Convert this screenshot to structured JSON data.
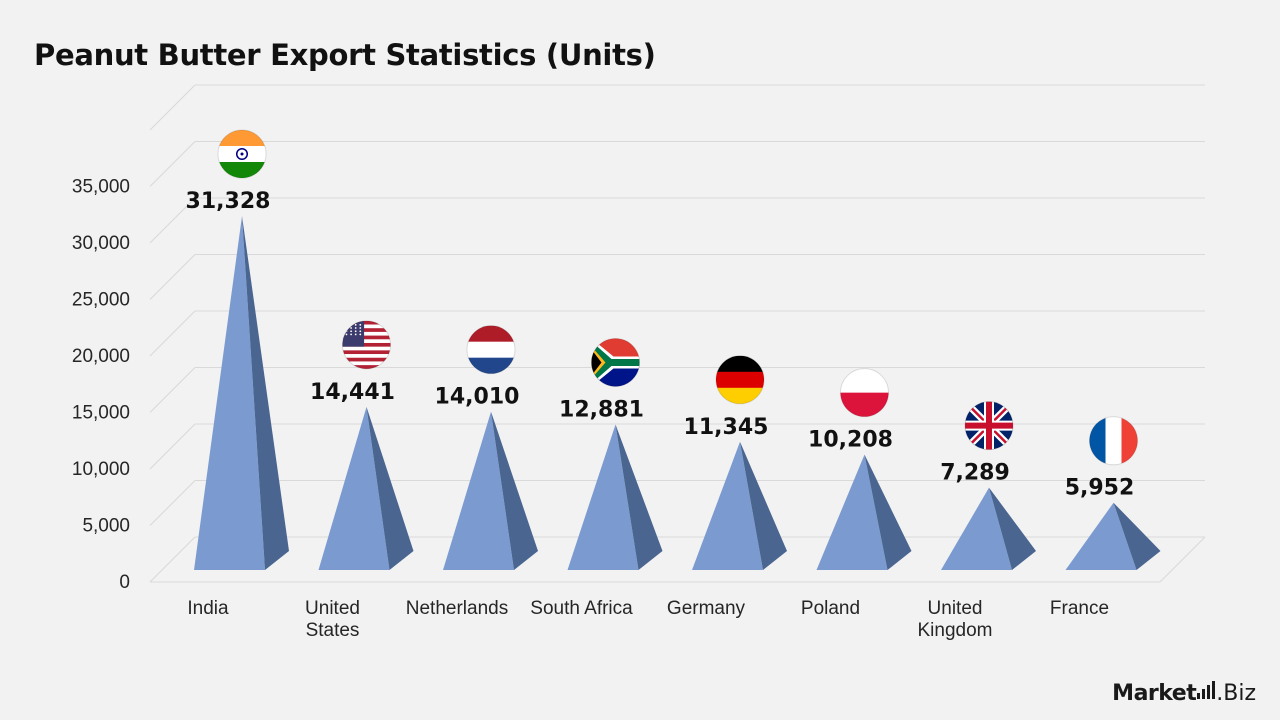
{
  "page": {
    "title": "Peanut Butter Export Statistics (Units)"
  },
  "brand": {
    "word": "Market",
    "suffix": ".Biz"
  },
  "colors": {
    "pyramid_front": "#7b9bd0",
    "pyramid_side": "#4a6590",
    "grid": "#d9d9d9",
    "axis_text": "#262626",
    "label_text": "#111111"
  },
  "chart_data": {
    "type": "bar",
    "style": "3d-pyramid",
    "title": "Peanut Butter Export Statistics (Units)",
    "categories": [
      "India",
      "United States",
      "Netherlands",
      "South Africa",
      "Germany",
      "Poland",
      "United Kingdom",
      "France"
    ],
    "category_lines": [
      [
        "India"
      ],
      [
        "United",
        "States"
      ],
      [
        "Netherlands"
      ],
      [
        "South Africa"
      ],
      [
        "Germany"
      ],
      [
        "Poland"
      ],
      [
        "United",
        "Kingdom"
      ],
      [
        "France"
      ]
    ],
    "values": [
      31328,
      14441,
      14010,
      12881,
      11345,
      10208,
      7289,
      5952
    ],
    "value_labels": [
      "31,328",
      "14,441",
      "14,010",
      "12,881",
      "11,345",
      "10,208",
      "7,289",
      "5,952"
    ],
    "flags": [
      "india-flag-icon",
      "usa-flag-icon",
      "netherlands-flag-icon",
      "south-africa-flag-icon",
      "germany-flag-icon",
      "poland-flag-icon",
      "uk-flag-icon",
      "france-flag-icon"
    ],
    "yticks": [
      0,
      5000,
      10000,
      15000,
      20000,
      25000,
      30000,
      35000
    ],
    "ytick_labels": [
      "0",
      "5,000",
      "10,000",
      "15,000",
      "20,000",
      "25,000",
      "30,000",
      "35,000"
    ],
    "ylim": [
      0,
      35000
    ],
    "xlabel": "",
    "ylabel": "",
    "grid": true,
    "legend": "none"
  }
}
